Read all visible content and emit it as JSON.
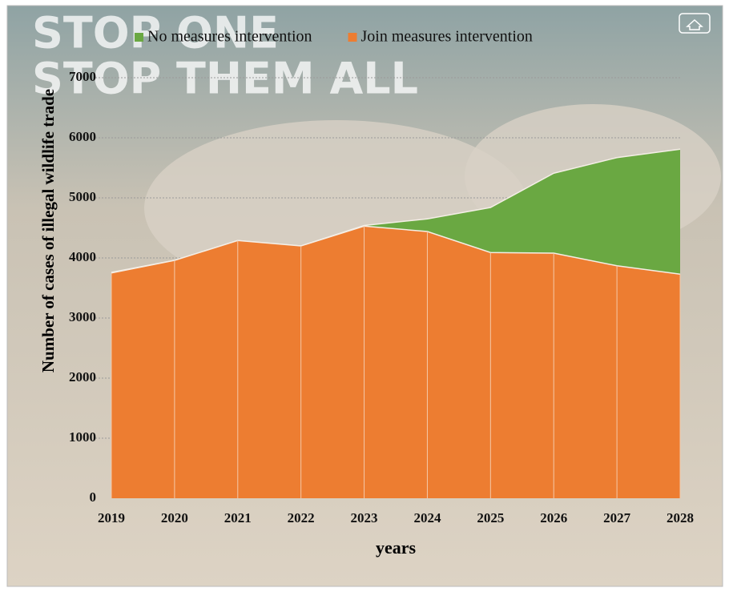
{
  "chart_data": {
    "type": "area",
    "background_text": [
      "STOP ONE",
      "STOP THEM ALL"
    ],
    "xlabel": "years",
    "ylabel": "Number of cases of illegal wildlife trade",
    "categories": [
      "2019",
      "2020",
      "2021",
      "2022",
      "2023",
      "2024",
      "2025",
      "2026",
      "2027",
      "2028"
    ],
    "series": [
      {
        "name": "No measures intervention",
        "color": "#6aa842",
        "values": [
          3760,
          3960,
          4290,
          4200,
          4540,
          4650,
          4840,
          5410,
          5670,
          5810
        ]
      },
      {
        "name": "Join measures intervention",
        "color": "#ed7d31",
        "values": [
          3750,
          3960,
          4290,
          4200,
          4530,
          4440,
          4090,
          4080,
          3870,
          3730
        ]
      }
    ],
    "ylim": [
      0,
      7000
    ],
    "yticks": [
      0,
      1000,
      2000,
      3000,
      4000,
      5000,
      6000,
      7000
    ],
    "grid": true
  }
}
